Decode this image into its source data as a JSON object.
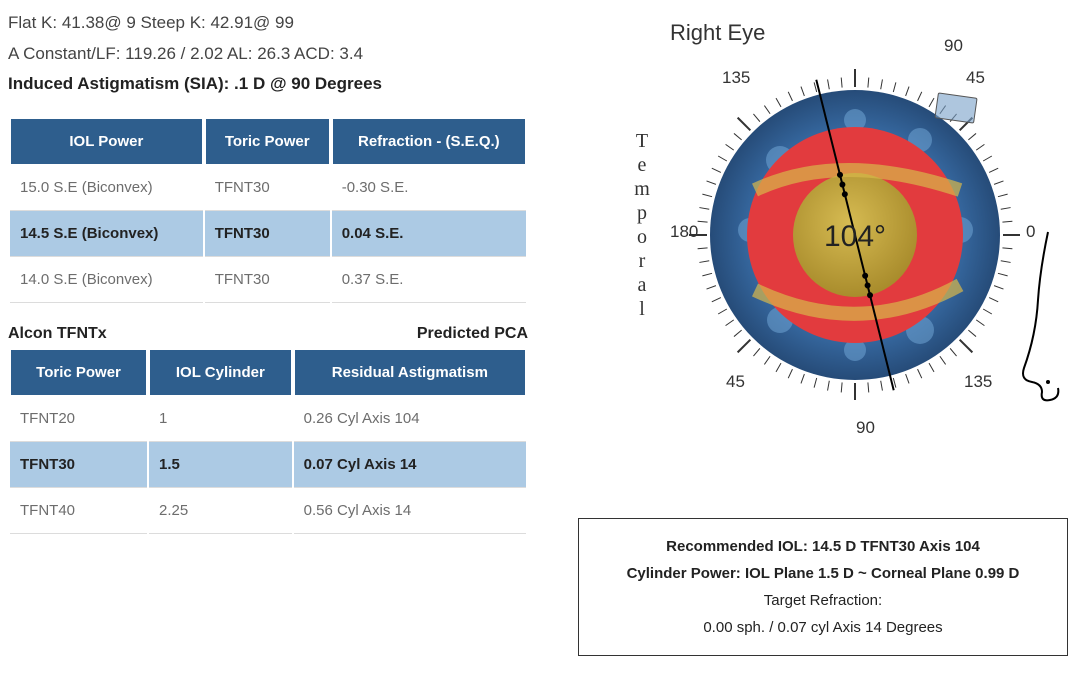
{
  "header": {
    "line1": "Flat K: 41.38@ 9  Steep K: 42.91@ 99",
    "line2": "A Constant/LF: 119.26 / 2.02   AL: 26.3 ACD: 3.4",
    "line3": "Induced Astigmatism (SIA): .1 D @  90 Degrees"
  },
  "iol_table": {
    "headers": {
      "c1": "IOL Power",
      "c2": "Toric Power",
      "c3": "Refraction - (S.E.Q.)"
    },
    "rows": [
      {
        "c1": "15.0 S.E (Biconvex)",
        "c2": "TFNT30",
        "c3": "-0.30 S.E.",
        "hl": false
      },
      {
        "c1": "14.5 S.E (Biconvex)",
        "c2": "TFNT30",
        "c3": "0.04 S.E.",
        "hl": true
      },
      {
        "c1": "14.0 S.E (Biconvex)",
        "c2": "TFNT30",
        "c3": "0.37 S.E.",
        "hl": false
      }
    ]
  },
  "sub_title": {
    "left": "Alcon TFNTx",
    "right": "Predicted PCA"
  },
  "toric_table": {
    "headers": {
      "c1": "Toric Power",
      "c2": "IOL Cylinder",
      "c3": "Residual Astigmatism"
    },
    "rows": [
      {
        "c1": "TFNT20",
        "c2": "1",
        "c3": "0.26 Cyl Axis 104",
        "hl": false
      },
      {
        "c1": "TFNT30",
        "c2": "1.5",
        "c3": "0.07 Cyl Axis 14",
        "hl": true
      },
      {
        "c1": "TFNT40",
        "c2": "2.25",
        "c3": "0.56 Cyl Axis 14",
        "hl": false
      }
    ]
  },
  "eye": {
    "title": "Right Eye",
    "side_label": "Temporal",
    "center_label": "104°",
    "axis_angle_deg": 104,
    "ticks": {
      "top90": "90",
      "t135": "135",
      "t45": "45",
      "t180": "180",
      "t0": "0",
      "b45": "45",
      "b135": "135",
      "b90": "90"
    },
    "colors": {
      "outer": "#2b578e",
      "outer_mid": "#3d74b0",
      "inner_ring": "#e23b3e",
      "lens": "#bda03a",
      "lens_hi": "#d6bb52",
      "haptic": "#d9b84a",
      "tick": "#333333",
      "axis_line": "#000000",
      "dot": "#000000"
    }
  },
  "recommend": {
    "l1": "Recommended IOL: 14.5 D   TFNT30    Axis 104",
    "l2": "Cylinder Power: IOL Plane 1.5 D ~ Corneal Plane 0.99 D",
    "l3": "Target Refraction:",
    "l4": "0.00 sph. / 0.07 cyl Axis 14 Degrees"
  }
}
